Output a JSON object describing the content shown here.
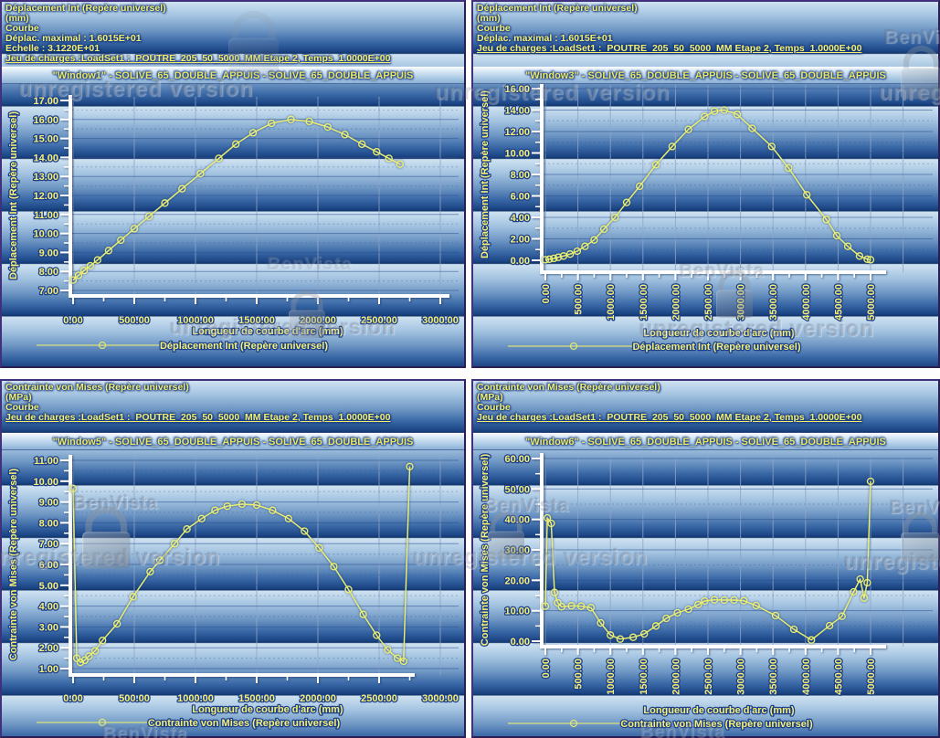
{
  "watermark": {
    "brand": "BenVista",
    "status_text": "unregistered version"
  },
  "colors": {
    "curve": "#e9ef6f",
    "label_text": "#f5f175",
    "label_outline": "#1d3f8c",
    "axis": "#ffffff",
    "grid_vertical": "#8fa6c9",
    "grid_horizontal": "#2c4f92",
    "window_border": "#41307c"
  },
  "chart_data": [
    {
      "type": "line",
      "window_title": "\"Window1\" - SOLIVE_65_DOUBLE_APPUIS - SOLIVE_65_DOUBLE_APPUIS",
      "header_lines": [
        "Déplacement Int (Repère universel)",
        "(mm)",
        "Courbe",
        "Déplac. maximal : 1.6015E+01",
        "Echelle : 3.1220E+01",
        "Jeu de charges :LoadSet1 :  POUTRE_205_50_5000_MM Etape 2, Temps  1.0000E+00"
      ],
      "ylabel": "Déplacement Int (Repère universel)",
      "xlabel": "Longueur de courbe d'arc (mm)",
      "legend": "Déplacement Int (Repère universel)",
      "ylim": [
        7,
        17
      ],
      "xlim": [
        0,
        3000
      ],
      "yticks": [
        7,
        8,
        9,
        10,
        11,
        12,
        13,
        14,
        15,
        16,
        17
      ],
      "xticks": [
        0,
        500,
        1000,
        1500,
        2000,
        2500,
        3000
      ],
      "x": [
        0,
        45,
        90,
        140,
        200,
        290,
        390,
        500,
        620,
        750,
        890,
        1040,
        1190,
        1330,
        1470,
        1620,
        1780,
        1930,
        2080,
        2220,
        2360,
        2480,
        2580,
        2670
      ],
      "y": [
        7.55,
        7.8,
        8.05,
        8.3,
        8.6,
        9.1,
        9.65,
        10.25,
        10.9,
        11.6,
        12.35,
        13.15,
        13.95,
        14.7,
        15.3,
        15.8,
        16.0,
        15.9,
        15.6,
        15.2,
        14.7,
        14.3,
        13.95,
        13.65
      ]
    },
    {
      "type": "line",
      "window_title": "\"Window3\" - SOLIVE_65_DOUBLE_APPUIS - SOLIVE_65_DOUBLE_APPUIS",
      "header_lines": [
        "Déplacement Int (Repère universel)",
        "(mm)",
        "Courbe",
        "Déplac. maximal : 1.6015E+01",
        "Jeu de charges :LoadSet1 :  POUTRE_205_50_5000_MM Etape 2, Temps  1.0000E+00"
      ],
      "ylabel": "Déplacement Int (Repère universel)",
      "xlabel": "Longueur de courbe d'arc (mm)",
      "legend": "Déplacement Int (Repère universel)",
      "ylim": [
        0,
        16
      ],
      "xlim": [
        0,
        5000
      ],
      "yticks": [
        0,
        2,
        4,
        6,
        8,
        10,
        12,
        14,
        16
      ],
      "xticks": [
        0,
        500,
        1000,
        1500,
        2000,
        2500,
        3000,
        3500,
        4000,
        4500,
        5000
      ],
      "x": [
        0,
        60,
        130,
        200,
        280,
        380,
        490,
        610,
        750,
        900,
        1070,
        1250,
        1450,
        1700,
        1950,
        2200,
        2450,
        2600,
        2750,
        2950,
        3180,
        3480,
        3740,
        4020,
        4320,
        4480,
        4650,
        4830,
        4950,
        5000
      ],
      "y": [
        0.05,
        0.1,
        0.18,
        0.28,
        0.4,
        0.58,
        0.85,
        1.3,
        1.9,
        2.9,
        4.0,
        5.4,
        6.9,
        8.9,
        10.6,
        12.2,
        13.4,
        13.9,
        14.0,
        13.6,
        12.3,
        10.6,
        8.6,
        6.1,
        3.8,
        2.3,
        1.3,
        0.4,
        0.1,
        0.05
      ]
    },
    {
      "type": "line",
      "window_title": "\"Window5\" - SOLIVE_65_DOUBLE_APPUIS - SOLIVE_65_DOUBLE_APPUIS",
      "header_lines": [
        "Contrainte von Mises (Repère universel)",
        "(MPa)",
        "Courbe",
        "Jeu de charges :LoadSet1 :  POUTRE_205_50_5000_MM Etape 2, Temps  1.0000E+00"
      ],
      "ylabel": "Contrainte von Mises (Repère universel)",
      "xlabel": "Longueur de courbe d'arc (mm)",
      "legend": "Contrainte von Mises (Repère universel)",
      "ylim": [
        1,
        11
      ],
      "xlim": [
        0,
        3000
      ],
      "yticks": [
        1,
        2,
        3,
        4,
        5,
        6,
        7,
        8,
        9,
        10,
        11
      ],
      "xticks": [
        0,
        500,
        1000,
        1500,
        2000,
        2500,
        3000
      ],
      "x": [
        0,
        30,
        60,
        95,
        130,
        180,
        240,
        360,
        490,
        630,
        710,
        830,
        930,
        1050,
        1160,
        1260,
        1380,
        1500,
        1630,
        1760,
        1890,
        2010,
        2130,
        2250,
        2370,
        2480,
        2570,
        2650,
        2700,
        2750
      ],
      "y": [
        9.65,
        1.5,
        1.3,
        1.4,
        1.6,
        1.85,
        2.35,
        3.15,
        4.45,
        5.65,
        6.2,
        7.0,
        7.7,
        8.2,
        8.6,
        8.8,
        8.9,
        8.85,
        8.6,
        8.2,
        7.6,
        6.8,
        5.9,
        4.8,
        3.6,
        2.6,
        1.9,
        1.5,
        1.35,
        10.7
      ]
    },
    {
      "type": "line",
      "window_title": "\"Window6\" - SOLIVE_65_DOUBLE_APPUIS - SOLIVE_65_DOUBLE_APPUIS",
      "header_lines": [
        "Contrainte von Mises (Repère universel)",
        "(MPa)",
        "Courbe",
        "Jeu de charges :LoadSet1 :  POUTRE_205_50_5000_MM Etape 2, Temps  1.0000E+00"
      ],
      "ylabel": "Contrainte von Mises (Repère universel)",
      "xlabel": "Longueur de courbe d'arc (mm)",
      "legend": "Contrainte von Mises (Repère universel)",
      "ylim": [
        0,
        60
      ],
      "xlim": [
        0,
        5000
      ],
      "yticks": [
        0,
        10,
        20,
        30,
        40,
        50,
        60
      ],
      "xticks": [
        0,
        500,
        1000,
        1500,
        2000,
        2500,
        3000,
        3500,
        4000,
        4500,
        5000
      ],
      "x": [
        0,
        30,
        90,
        140,
        190,
        250,
        400,
        550,
        700,
        850,
        1000,
        1150,
        1350,
        1520,
        1700,
        1860,
        2030,
        2200,
        2350,
        2450,
        2600,
        2750,
        2900,
        3050,
        3240,
        3540,
        3820,
        4090,
        4370,
        4560,
        4740,
        4840,
        4900,
        4950,
        5000
      ],
      "y": [
        11.5,
        40.5,
        38.7,
        16.0,
        12.6,
        11.3,
        11.6,
        11.5,
        11.0,
        6.0,
        2.0,
        0.7,
        1.3,
        2.4,
        5.0,
        7.5,
        9.3,
        10.5,
        12.0,
        13.2,
        13.6,
        13.5,
        13.5,
        13.3,
        11.7,
        8.4,
        3.9,
        0.4,
        5.1,
        8.2,
        16.2,
        20.4,
        14.2,
        19.2,
        52.5
      ]
    }
  ]
}
